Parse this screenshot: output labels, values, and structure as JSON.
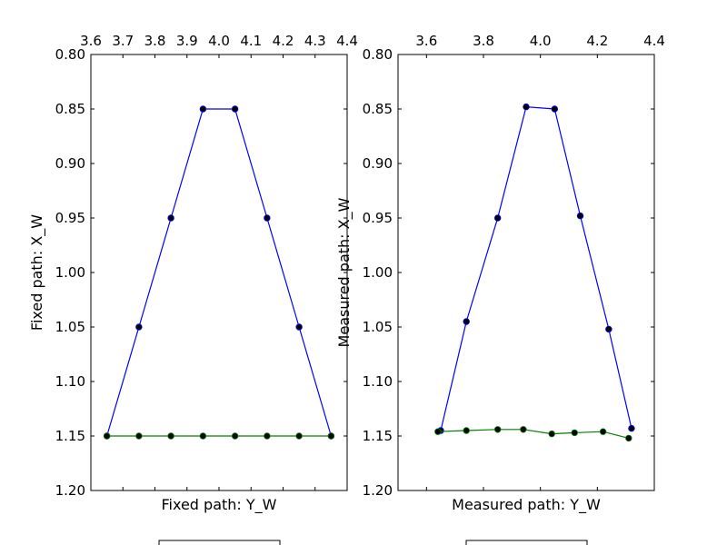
{
  "chart_data": [
    {
      "type": "line",
      "xlabel": "Fixed path: Y_W",
      "ylabel": "Fixed path: X_W",
      "xlim": [
        3.6,
        4.4
      ],
      "ylim": [
        0.8,
        1.2
      ],
      "y_inverted": true,
      "x_axis_position": "top",
      "grid": false,
      "legend": "bottom-center",
      "xticks": [
        "3.6",
        "3.7",
        "3.8",
        "3.9",
        "4.0",
        "4.1",
        "4.2",
        "4.3",
        "4.4"
      ],
      "yticks": [
        "0.80",
        "0.85",
        "0.90",
        "0.95",
        "1.00",
        "1.05",
        "1.10",
        "1.15",
        "1.20"
      ],
      "series": [
        {
          "color": "#0000ff",
          "x": [
            3.65,
            3.75,
            3.85,
            3.95,
            4.05,
            4.15,
            4.25,
            4.35
          ],
          "y": [
            1.15,
            1.05,
            0.95,
            0.85,
            0.85,
            0.95,
            1.05,
            1.15
          ]
        },
        {
          "color": "#008000",
          "x": [
            3.65,
            3.75,
            3.85,
            3.95,
            4.05,
            4.15,
            4.25,
            4.35
          ],
          "y": [
            1.15,
            1.15,
            1.15,
            1.15,
            1.15,
            1.15,
            1.15,
            1.15
          ]
        }
      ]
    },
    {
      "type": "line",
      "xlabel": "Measured path: Y_W",
      "ylabel": "Measured path: X_W",
      "xlim": [
        3.5,
        4.4
      ],
      "ylim": [
        0.8,
        1.2
      ],
      "y_inverted": true,
      "x_axis_position": "top",
      "grid": false,
      "legend": "bottom-center",
      "xticks": [
        "3.6",
        "3.8",
        "4.0",
        "4.2",
        "4.4"
      ],
      "yticks": [
        "0.80",
        "0.85",
        "0.90",
        "0.95",
        "1.00",
        "1.05",
        "1.10",
        "1.15",
        "1.20"
      ],
      "series": [
        {
          "color": "#0000ff",
          "x": [
            3.65,
            3.74,
            3.85,
            3.95,
            4.05,
            4.14,
            4.24,
            4.32
          ],
          "y": [
            1.145,
            1.045,
            0.95,
            0.848,
            0.85,
            0.948,
            1.052,
            1.143
          ]
        },
        {
          "color": "#008000",
          "x": [
            3.64,
            3.74,
            3.85,
            3.94,
            4.04,
            4.12,
            4.22,
            4.31
          ],
          "y": [
            1.146,
            1.145,
            1.144,
            1.144,
            1.148,
            1.147,
            1.146,
            1.152
          ]
        }
      ]
    }
  ]
}
